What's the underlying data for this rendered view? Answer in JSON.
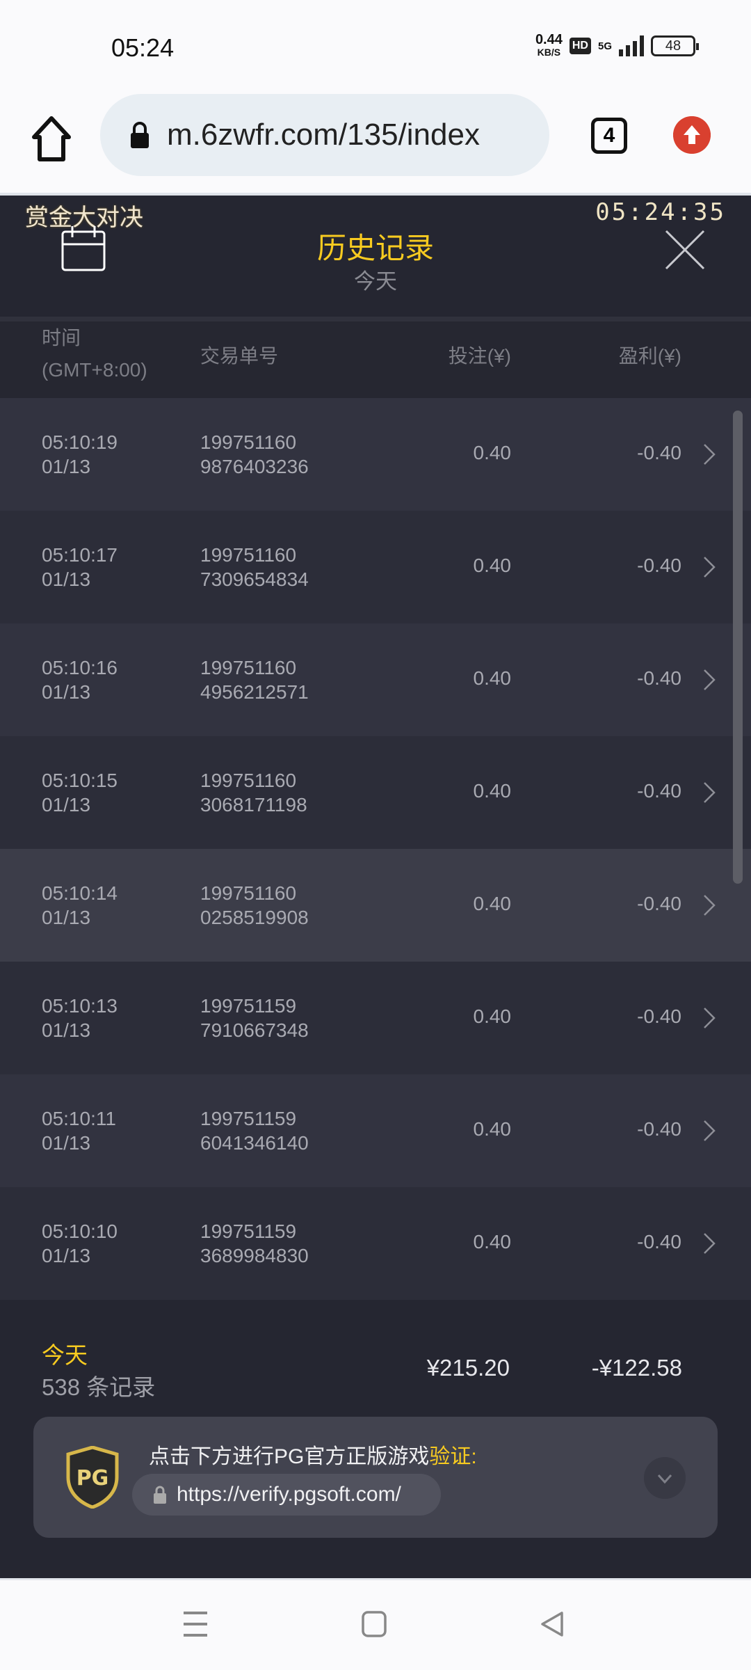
{
  "status_bar": {
    "time": "05:24",
    "net_speed": "0.44",
    "net_unit": "KB/S",
    "hd": "HD",
    "network": "5G",
    "battery": "48"
  },
  "browser": {
    "url": "m.6zwfr.com/135/index",
    "tab_count": "4"
  },
  "app": {
    "brand": "赏金大对决",
    "game_clock": "05:24:35",
    "title": "历史记录",
    "subtitle": "今天",
    "columns": {
      "time": "时间",
      "timezone": "(GMT+8:00)",
      "order": "交易单号",
      "bet": "投注(¥)",
      "profit": "盈利(¥)"
    },
    "rows": [
      {
        "time": "05:10:19",
        "date": "01/13",
        "order1": "199751160",
        "order2": "9876403236",
        "bet": "0.40",
        "profit": "-0.40"
      },
      {
        "time": "05:10:17",
        "date": "01/13",
        "order1": "199751160",
        "order2": "7309654834",
        "bet": "0.40",
        "profit": "-0.40"
      },
      {
        "time": "05:10:16",
        "date": "01/13",
        "order1": "199751160",
        "order2": "4956212571",
        "bet": "0.40",
        "profit": "-0.40"
      },
      {
        "time": "05:10:15",
        "date": "01/13",
        "order1": "199751160",
        "order2": "3068171198",
        "bet": "0.40",
        "profit": "-0.40"
      },
      {
        "time": "05:10:14",
        "date": "01/13",
        "order1": "199751160",
        "order2": "0258519908",
        "bet": "0.40",
        "profit": "-0.40"
      },
      {
        "time": "05:10:13",
        "date": "01/13",
        "order1": "199751159",
        "order2": "7910667348",
        "bet": "0.40",
        "profit": "-0.40"
      },
      {
        "time": "05:10:11",
        "date": "01/13",
        "order1": "199751159",
        "order2": "6041346140",
        "bet": "0.40",
        "profit": "-0.40"
      },
      {
        "time": "05:10:10",
        "date": "01/13",
        "order1": "199751159",
        "order2": "3689984830",
        "bet": "0.40",
        "profit": "-0.40"
      }
    ],
    "summary": {
      "label": "今天",
      "count": "538 条记录",
      "total_bet": "¥215.20",
      "total_profit": "-¥122.58"
    },
    "verify": {
      "text": "点击下方进行PG官方正版游戏",
      "highlight": "验证",
      "colon": ":",
      "url": "https://verify.pgsoft.com/",
      "logo": "PG"
    },
    "colors": {
      "accent": "#f8cb20",
      "background": "#252631"
    }
  }
}
